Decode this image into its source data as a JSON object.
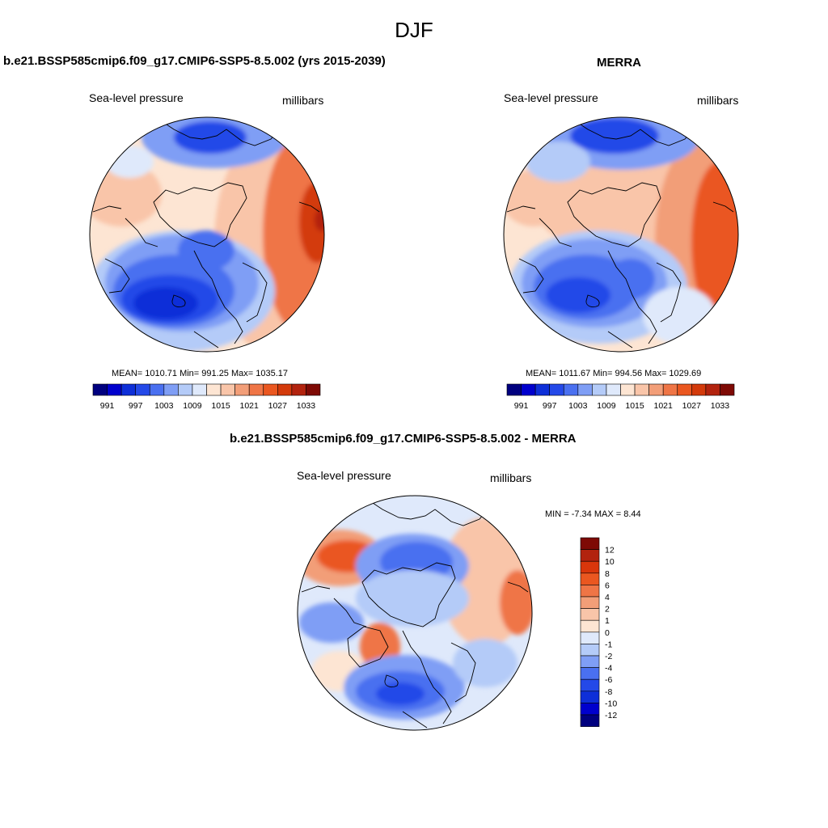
{
  "figure": {
    "title": "DJF"
  },
  "panels": [
    {
      "id": "model",
      "title": "b.e21.BSSP585cmip6.f09_g17.CMIP6-SSP5-8.5.002 (yrs 2015-2039)",
      "variable": "Sea-level pressure",
      "units": "millibars",
      "stats": "MEAN= 1010.71  Min= 991.25  Max= 1035.17"
    },
    {
      "id": "obs",
      "title": "MERRA",
      "variable": "Sea-level pressure",
      "units": "millibars",
      "stats": "MEAN= 1011.67  Min= 994.56  Max= 1029.69"
    },
    {
      "id": "diff",
      "title": "b.e21.BSSP585cmip6.f09_g17.CMIP6-SSP5-8.5.002 - MERRA",
      "variable": "Sea-level pressure",
      "units": "millibars",
      "stats": "MIN =  -7.34 MAX =   8.44"
    }
  ],
  "colorbars": {
    "slp": {
      "colors": [
        "#00007f",
        "#0000cd",
        "#0e2fd8",
        "#2449e8",
        "#4a70f0",
        "#7f9ef5",
        "#b4cbf8",
        "#dfe9fb",
        "#fde5d3",
        "#f9c5a9",
        "#f29e78",
        "#ef7546",
        "#ea5720",
        "#d33a0b",
        "#b2230e",
        "#7e0a05"
      ],
      "labels": [
        "991",
        "997",
        "1003",
        "1009",
        "1015",
        "1021",
        "1027",
        "1033"
      ]
    },
    "diff": {
      "colors": [
        "#7e0a05",
        "#b2230e",
        "#d9360b",
        "#ea5720",
        "#ef7546",
        "#f29e78",
        "#f9c5a9",
        "#fde5d3",
        "#dfe9fb",
        "#b4cbf8",
        "#7f9ef5",
        "#4a70f0",
        "#2449e8",
        "#0e2fd8",
        "#0000cd",
        "#00007f"
      ],
      "labels": [
        "12",
        "10",
        "8",
        "6",
        "4",
        "2",
        "1",
        "0",
        "-1",
        "-2",
        "-4",
        "-6",
        "-8",
        "-10",
        "-12"
      ]
    }
  }
}
